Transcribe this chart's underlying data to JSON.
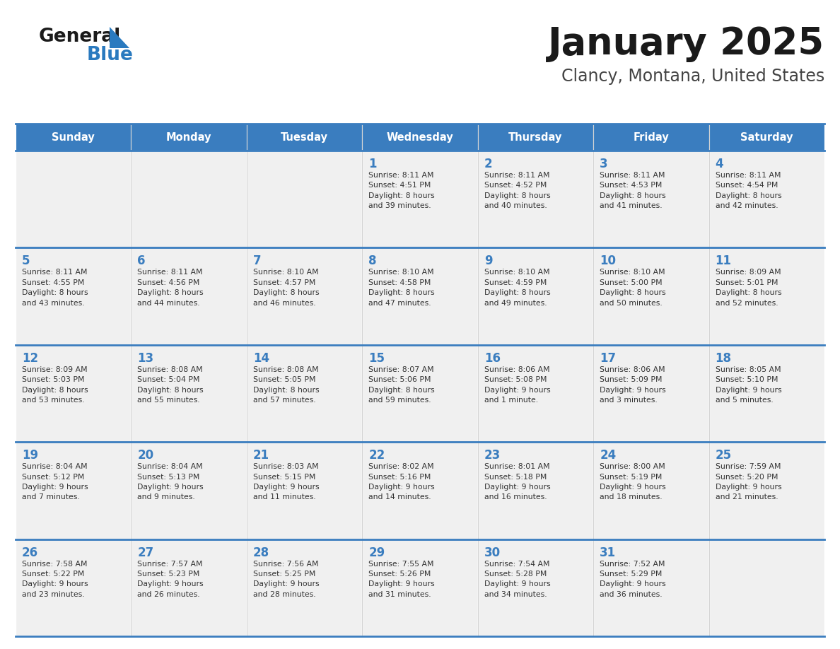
{
  "title": "January 2025",
  "subtitle": "Clancy, Montana, United States",
  "days_of_week": [
    "Sunday",
    "Monday",
    "Tuesday",
    "Wednesday",
    "Thursday",
    "Friday",
    "Saturday"
  ],
  "header_bg": "#3a7dbf",
  "header_text": "#ffffff",
  "row_bg": "#f0f0f0",
  "border_color": "#3a7dbf",
  "day_number_color": "#3a7dbf",
  "text_color": "#333333",
  "calendar": [
    [
      {
        "day": null,
        "info": null
      },
      {
        "day": null,
        "info": null
      },
      {
        "day": null,
        "info": null
      },
      {
        "day": 1,
        "info": "Sunrise: 8:11 AM\nSunset: 4:51 PM\nDaylight: 8 hours\nand 39 minutes."
      },
      {
        "day": 2,
        "info": "Sunrise: 8:11 AM\nSunset: 4:52 PM\nDaylight: 8 hours\nand 40 minutes."
      },
      {
        "day": 3,
        "info": "Sunrise: 8:11 AM\nSunset: 4:53 PM\nDaylight: 8 hours\nand 41 minutes."
      },
      {
        "day": 4,
        "info": "Sunrise: 8:11 AM\nSunset: 4:54 PM\nDaylight: 8 hours\nand 42 minutes."
      }
    ],
    [
      {
        "day": 5,
        "info": "Sunrise: 8:11 AM\nSunset: 4:55 PM\nDaylight: 8 hours\nand 43 minutes."
      },
      {
        "day": 6,
        "info": "Sunrise: 8:11 AM\nSunset: 4:56 PM\nDaylight: 8 hours\nand 44 minutes."
      },
      {
        "day": 7,
        "info": "Sunrise: 8:10 AM\nSunset: 4:57 PM\nDaylight: 8 hours\nand 46 minutes."
      },
      {
        "day": 8,
        "info": "Sunrise: 8:10 AM\nSunset: 4:58 PM\nDaylight: 8 hours\nand 47 minutes."
      },
      {
        "day": 9,
        "info": "Sunrise: 8:10 AM\nSunset: 4:59 PM\nDaylight: 8 hours\nand 49 minutes."
      },
      {
        "day": 10,
        "info": "Sunrise: 8:10 AM\nSunset: 5:00 PM\nDaylight: 8 hours\nand 50 minutes."
      },
      {
        "day": 11,
        "info": "Sunrise: 8:09 AM\nSunset: 5:01 PM\nDaylight: 8 hours\nand 52 minutes."
      }
    ],
    [
      {
        "day": 12,
        "info": "Sunrise: 8:09 AM\nSunset: 5:03 PM\nDaylight: 8 hours\nand 53 minutes."
      },
      {
        "day": 13,
        "info": "Sunrise: 8:08 AM\nSunset: 5:04 PM\nDaylight: 8 hours\nand 55 minutes."
      },
      {
        "day": 14,
        "info": "Sunrise: 8:08 AM\nSunset: 5:05 PM\nDaylight: 8 hours\nand 57 minutes."
      },
      {
        "day": 15,
        "info": "Sunrise: 8:07 AM\nSunset: 5:06 PM\nDaylight: 8 hours\nand 59 minutes."
      },
      {
        "day": 16,
        "info": "Sunrise: 8:06 AM\nSunset: 5:08 PM\nDaylight: 9 hours\nand 1 minute."
      },
      {
        "day": 17,
        "info": "Sunrise: 8:06 AM\nSunset: 5:09 PM\nDaylight: 9 hours\nand 3 minutes."
      },
      {
        "day": 18,
        "info": "Sunrise: 8:05 AM\nSunset: 5:10 PM\nDaylight: 9 hours\nand 5 minutes."
      }
    ],
    [
      {
        "day": 19,
        "info": "Sunrise: 8:04 AM\nSunset: 5:12 PM\nDaylight: 9 hours\nand 7 minutes."
      },
      {
        "day": 20,
        "info": "Sunrise: 8:04 AM\nSunset: 5:13 PM\nDaylight: 9 hours\nand 9 minutes."
      },
      {
        "day": 21,
        "info": "Sunrise: 8:03 AM\nSunset: 5:15 PM\nDaylight: 9 hours\nand 11 minutes."
      },
      {
        "day": 22,
        "info": "Sunrise: 8:02 AM\nSunset: 5:16 PM\nDaylight: 9 hours\nand 14 minutes."
      },
      {
        "day": 23,
        "info": "Sunrise: 8:01 AM\nSunset: 5:18 PM\nDaylight: 9 hours\nand 16 minutes."
      },
      {
        "day": 24,
        "info": "Sunrise: 8:00 AM\nSunset: 5:19 PM\nDaylight: 9 hours\nand 18 minutes."
      },
      {
        "day": 25,
        "info": "Sunrise: 7:59 AM\nSunset: 5:20 PM\nDaylight: 9 hours\nand 21 minutes."
      }
    ],
    [
      {
        "day": 26,
        "info": "Sunrise: 7:58 AM\nSunset: 5:22 PM\nDaylight: 9 hours\nand 23 minutes."
      },
      {
        "day": 27,
        "info": "Sunrise: 7:57 AM\nSunset: 5:23 PM\nDaylight: 9 hours\nand 26 minutes."
      },
      {
        "day": 28,
        "info": "Sunrise: 7:56 AM\nSunset: 5:25 PM\nDaylight: 9 hours\nand 28 minutes."
      },
      {
        "day": 29,
        "info": "Sunrise: 7:55 AM\nSunset: 5:26 PM\nDaylight: 9 hours\nand 31 minutes."
      },
      {
        "day": 30,
        "info": "Sunrise: 7:54 AM\nSunset: 5:28 PM\nDaylight: 9 hours\nand 34 minutes."
      },
      {
        "day": 31,
        "info": "Sunrise: 7:52 AM\nSunset: 5:29 PM\nDaylight: 9 hours\nand 36 minutes."
      },
      {
        "day": null,
        "info": null
      }
    ]
  ]
}
